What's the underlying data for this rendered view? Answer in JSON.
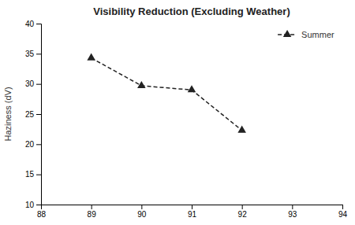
{
  "chart_data": {
    "type": "line",
    "title": "Visibility Reduction (Excluding Weather)",
    "ylabel": "Haziness (dV)",
    "x": [
      89,
      90,
      91,
      92
    ],
    "series": [
      {
        "name": "Summer",
        "color": "#222222",
        "marker": "triangle",
        "line_style": "dashed",
        "values": [
          34.3,
          29.7,
          29.0,
          22.3
        ]
      }
    ],
    "xlim": [
      88,
      94
    ],
    "xticks": [
      88,
      89,
      90,
      91,
      92,
      93,
      94
    ],
    "ylim": [
      10,
      40
    ],
    "yticks": [
      10,
      15,
      20,
      25,
      30,
      35,
      40
    ],
    "legend": "upper right",
    "grid": false
  }
}
